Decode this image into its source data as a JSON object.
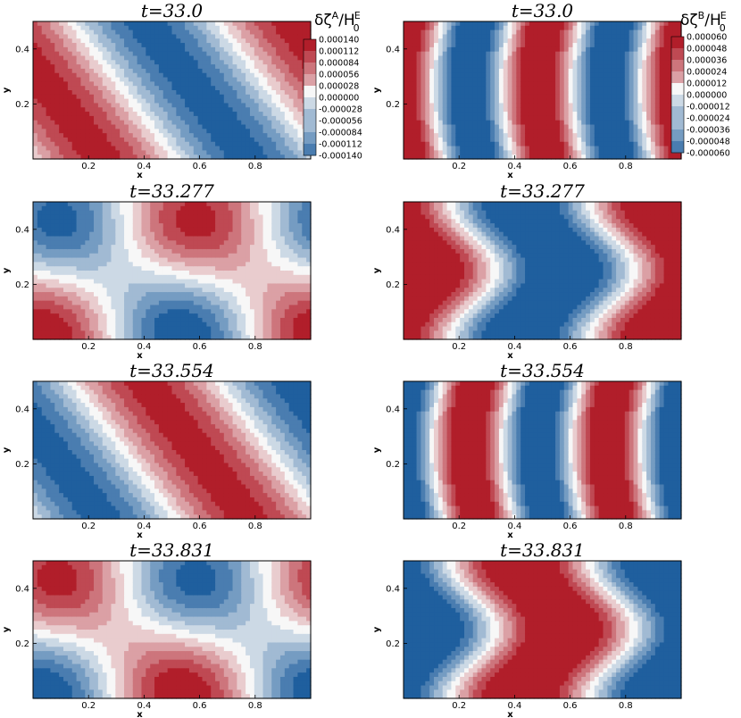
{
  "figure": {
    "description_type": "grid of filled contour plots",
    "colors": {
      "low": "#1f5f9e",
      "mid": "#f7f7f7",
      "high": "#b11e2a"
    }
  },
  "colorbars": {
    "A": {
      "label": "δζ",
      "sup": "A",
      "den": "H",
      "den_sub": "0",
      "den_sup": "E",
      "ticks": [
        "0.000140",
        "0.000112",
        "0.000084",
        "0.000056",
        "0.000028",
        "0.000000",
        "-0.000028",
        "-0.000056",
        "-0.000084",
        "-0.000112",
        "-0.000140"
      ]
    },
    "B": {
      "label": "δζ",
      "sup": "B",
      "den": "H",
      "den_sub": "0",
      "den_sup": "E",
      "ticks": [
        "0.000060",
        "0.000048",
        "0.000036",
        "0.000024",
        "0.000012",
        "0.000000",
        "-0.000012",
        "-0.000024",
        "-0.000036",
        "-0.000048",
        "-0.000060"
      ]
    }
  },
  "chart_data": [
    {
      "type": "heatmap",
      "title": "t=33.0",
      "xlabel": "x",
      "ylabel": "y",
      "xlim": [
        0,
        1
      ],
      "ylim": [
        0,
        0.5
      ],
      "xticks": [
        "0.2",
        "0.4",
        "0.6",
        "0.8"
      ],
      "yticks": [
        "0.2",
        "0.4"
      ],
      "field": "δζ^A/H_0^E",
      "vlim": [
        -0.00014,
        0.00014
      ],
      "pattern": "diag-A",
      "phase": 0
    },
    {
      "type": "heatmap",
      "title": "t=33.0",
      "xlabel": "x",
      "ylabel": "y",
      "xlim": [
        0,
        1
      ],
      "ylim": [
        0,
        0.5
      ],
      "xticks": [
        "0.2",
        "0.4",
        "0.6",
        "0.8"
      ],
      "yticks": [
        "0.2",
        "0.4"
      ],
      "field": "δζ^B/H_0^E",
      "vlim": [
        -6e-05,
        6e-05
      ],
      "pattern": "vert-B",
      "phase": 0
    },
    {
      "type": "heatmap",
      "title": "t=33.277",
      "xlabel": "x",
      "ylabel": "y",
      "xlim": [
        0,
        1
      ],
      "ylim": [
        0,
        0.5
      ],
      "xticks": [
        "0.2",
        "0.4",
        "0.6",
        "0.8"
      ],
      "yticks": [
        "0.2",
        "0.4"
      ],
      "field": "δζ^A/H_0^E",
      "vlim": [
        -0.00014,
        0.00014
      ],
      "pattern": "saddle-A",
      "phase": 1
    },
    {
      "type": "heatmap",
      "title": "t=33.277",
      "xlabel": "x",
      "ylabel": "y",
      "xlim": [
        0,
        1
      ],
      "ylim": [
        0,
        0.5
      ],
      "xticks": [
        "0.2",
        "0.4",
        "0.6",
        "0.8"
      ],
      "yticks": [
        "0.2",
        "0.4"
      ],
      "field": "δζ^B/H_0^E",
      "vlim": [
        -6e-05,
        6e-05
      ],
      "pattern": "curve-B",
      "phase": 1
    },
    {
      "type": "heatmap",
      "title": "t=33.554",
      "xlabel": "x",
      "ylabel": "y",
      "xlim": [
        0,
        1
      ],
      "ylim": [
        0,
        0.5
      ],
      "xticks": [
        "0.2",
        "0.4",
        "0.6",
        "0.8"
      ],
      "yticks": [
        "0.2",
        "0.4"
      ],
      "field": "δζ^A/H_0^E",
      "vlim": [
        -0.00014,
        0.00014
      ],
      "pattern": "diag-A",
      "phase": 2
    },
    {
      "type": "heatmap",
      "title": "t=33.554",
      "xlabel": "x",
      "ylabel": "y",
      "xlim": [
        0,
        1
      ],
      "ylim": [
        0,
        0.5
      ],
      "xticks": [
        "0.2",
        "0.4",
        "0.6",
        "0.8"
      ],
      "yticks": [
        "0.2",
        "0.4"
      ],
      "field": "δζ^B/H_0^E",
      "vlim": [
        -6e-05,
        6e-05
      ],
      "pattern": "vert-B",
      "phase": 2
    },
    {
      "type": "heatmap",
      "title": "t=33.831",
      "xlabel": "x",
      "ylabel": "y",
      "xlim": [
        0,
        1
      ],
      "ylim": [
        0,
        0.5
      ],
      "xticks": [
        "0.2",
        "0.4",
        "0.6",
        "0.8"
      ],
      "yticks": [
        "0.2",
        "0.4"
      ],
      "field": "δζ^A/H_0^E",
      "vlim": [
        -0.00014,
        0.00014
      ],
      "pattern": "saddle-A",
      "phase": 3
    },
    {
      "type": "heatmap",
      "title": "t=33.831",
      "xlabel": "x",
      "ylabel": "y",
      "xlim": [
        0,
        1
      ],
      "ylim": [
        0,
        0.5
      ],
      "xticks": [
        "0.2",
        "0.4",
        "0.6",
        "0.8"
      ],
      "yticks": [
        "0.2",
        "0.4"
      ],
      "field": "δζ^B/H_0^E",
      "vlim": [
        -6e-05,
        6e-05
      ],
      "pattern": "curve-B",
      "phase": 3
    }
  ]
}
